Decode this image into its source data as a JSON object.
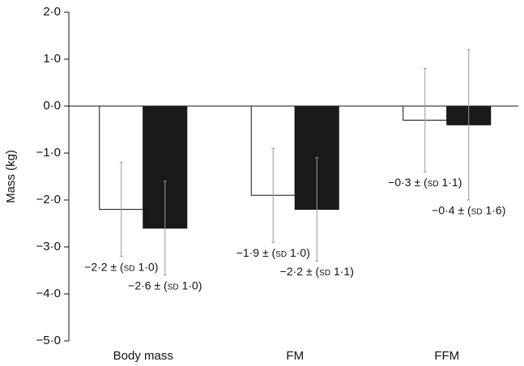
{
  "chart_data": {
    "type": "bar",
    "y_label": "Mass (kg)",
    "categories": [
      "Body mass",
      "FM",
      "FFM"
    ],
    "series": [
      {
        "color": "#ffffff",
        "values": [
          -2.2,
          -1.9,
          -0.3
        ],
        "errors": [
          1.0,
          1.0,
          1.1
        ],
        "value_labels": [
          "−2·2 ± (sd 1·0)",
          "−1·9 ± (sd 1·0)",
          "−0·3 ± (sd 1·1)"
        ]
      },
      {
        "color": "#1a1a1a",
        "values": [
          -2.6,
          -2.2,
          -0.4
        ],
        "errors": [
          1.0,
          1.1,
          1.6
        ],
        "value_labels": [
          "−2·6 ± (sd 1·0)",
          "−2·2 ± (sd 1·1)",
          "−0·4 ± (sd 1·6)"
        ]
      }
    ],
    "ylim": [
      -5,
      2
    ],
    "yticks": [
      {
        "value": 2,
        "label": "2·0"
      },
      {
        "value": 1,
        "label": "1·0"
      },
      {
        "value": 0,
        "label": "0·0"
      },
      {
        "value": -1,
        "label": "−1·0"
      },
      {
        "value": -2,
        "label": "−2·0"
      },
      {
        "value": -3,
        "label": "−3·0"
      },
      {
        "value": -4,
        "label": "−4·0"
      },
      {
        "value": -5,
        "label": "−5·0"
      }
    ]
  }
}
